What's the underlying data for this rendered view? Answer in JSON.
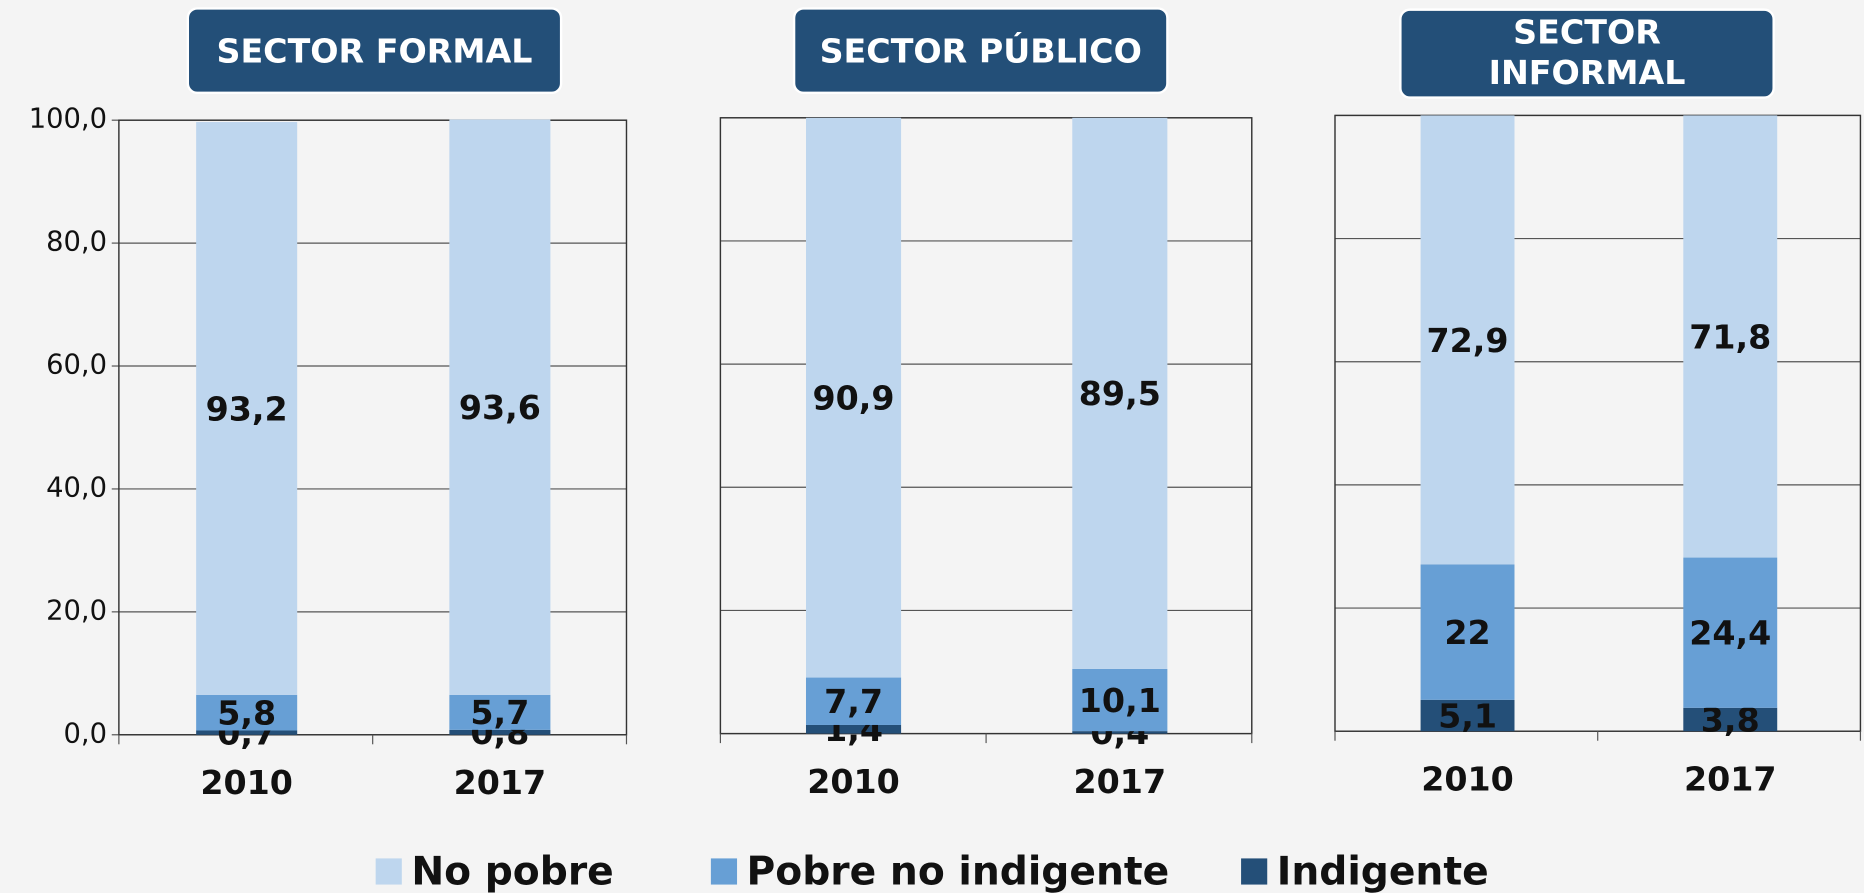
{
  "chart_data": [
    {
      "type": "bar",
      "stacked": true,
      "title": "SECTOR FORMAL",
      "categories": [
        "2010",
        "2017"
      ],
      "ylim": [
        0,
        100
      ],
      "yticks": [
        {
          "value": 0,
          "label": "0,0"
        },
        {
          "value": 20,
          "label": "20,0"
        },
        {
          "value": 40,
          "label": "40,0"
        },
        {
          "value": 60,
          "label": "60,0"
        },
        {
          "value": 80,
          "label": "80,0"
        },
        {
          "value": 100,
          "label": "100,0"
        }
      ],
      "grid": true,
      "series": [
        {
          "name": "Indigente",
          "color": "#244f78",
          "values": [
            0.7,
            0.8
          ],
          "value_labels": [
            "0,7",
            "0,8"
          ]
        },
        {
          "name": "Pobre no indigente",
          "color": "#679fd5",
          "values": [
            5.8,
            5.7
          ],
          "value_labels": [
            "5,8",
            "5,7"
          ]
        },
        {
          "name": "No pobre",
          "color": "#bed6ee",
          "values": [
            93.2,
            93.6
          ],
          "value_labels": [
            "93,2",
            "93,6"
          ]
        }
      ]
    },
    {
      "type": "bar",
      "stacked": true,
      "title": "SECTOR PÚBLICO",
      "categories": [
        "2010",
        "2017"
      ],
      "ylim": [
        0,
        100
      ],
      "yticks": [
        0,
        20,
        40,
        60,
        80,
        100
      ],
      "grid": true,
      "series": [
        {
          "name": "Indigente",
          "color": "#244f78",
          "values": [
            1.4,
            0.4
          ],
          "value_labels": [
            "1,4",
            "0,4"
          ]
        },
        {
          "name": "Pobre no indigente",
          "color": "#679fd5",
          "values": [
            7.7,
            10.1
          ],
          "value_labels": [
            "7,7",
            "10,1"
          ]
        },
        {
          "name": "No pobre",
          "color": "#bed6ee",
          "values": [
            90.9,
            89.5
          ],
          "value_labels": [
            "90,9",
            "89,5"
          ]
        }
      ]
    },
    {
      "type": "bar",
      "stacked": true,
      "title": "SECTOR INFORMAL",
      "categories": [
        "2010",
        "2017"
      ],
      "ylim": [
        0,
        100
      ],
      "yticks": [
        0,
        20,
        40,
        60,
        80,
        100
      ],
      "grid": true,
      "series": [
        {
          "name": "Indigente",
          "color": "#244f78",
          "values": [
            5.1,
            3.8
          ],
          "value_labels": [
            "5,1",
            "3,8"
          ]
        },
        {
          "name": "Pobre no indigente",
          "color": "#679fd5",
          "values": [
            22,
            24.4
          ],
          "value_labels": [
            "22",
            "24,4"
          ]
        },
        {
          "name": "No pobre",
          "color": "#bed6ee",
          "values": [
            72.9,
            71.8
          ],
          "value_labels": [
            "72,9",
            "71,8"
          ]
        }
      ]
    }
  ]
}
